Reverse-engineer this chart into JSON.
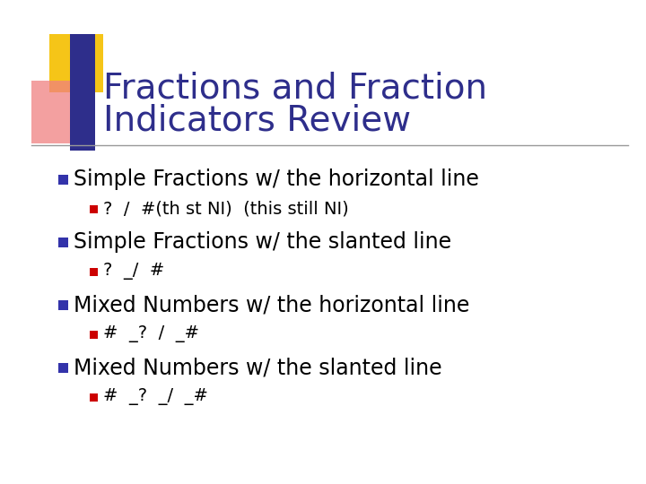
{
  "title_line1": "Fractions and Fraction",
  "title_line2": "Indicators Review",
  "title_color": "#2E2E8B",
  "background_color": "#FFFFFF",
  "bullet1_text": "Simple Fractions w/ the horizontal line",
  "bullet1_sub": "?  /  #(th st NI)  (this still NI)",
  "bullet2_text": "Simple Fractions w/ the slanted line",
  "bullet2_sub": "?  _/  #",
  "bullet3_text": "Mixed Numbers w/ the horizontal line",
  "bullet3_sub": "#  _?  /  _#",
  "bullet4_text": "Mixed Numbers w/ the slanted line",
  "bullet4_sub": "#  _?  _/  _#",
  "blue_square_color": "#3333AA",
  "red_square_color": "#CC0000",
  "body_text_color": "#000000",
  "separator_line_color": "#999999",
  "decoration_yellow": "#F5C518",
  "decoration_pink": "#F08080",
  "decoration_blue": "#2E2E8B"
}
